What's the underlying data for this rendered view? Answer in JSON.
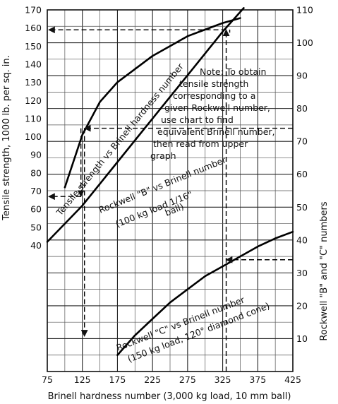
{
  "chart_data": {
    "type": "line",
    "xlabel": "Brinell hardness number (3,000 kg load, 10 mm ball)",
    "ylabel_left": "Tensile strength, 1000 lb. per sq. in.",
    "ylabel_right": "Rockwell \"B\" and \"C\" numbers",
    "xlim": [
      75,
      425
    ],
    "ylim_right": [
      0,
      110
    ],
    "ylim_left": [
      40,
      170
    ],
    "grid": true,
    "x_ticks": [
      "75",
      "125",
      "175",
      "225",
      "275",
      "325",
      "375",
      "425"
    ],
    "y_left_ticks": [
      "40",
      "50",
      "60",
      "70",
      "80",
      "90",
      "100",
      "110",
      "120",
      "130",
      "140",
      "150",
      "160",
      "170"
    ],
    "y_right_ticks": [
      "10",
      "20",
      "30",
      "40",
      "50",
      "60",
      "70",
      "80",
      "90",
      "100",
      "110"
    ],
    "series": [
      {
        "name": "Tensile strength vs Brinell hardness number",
        "axis": "left",
        "x": [
          75,
          125,
          175,
          225,
          275,
          325,
          355
        ],
        "y": [
          42,
          62,
          86,
          110,
          134,
          158,
          171
        ]
      },
      {
        "name": "Rockwell \"B\" vs Brinell number",
        "axis": "right",
        "x": [
          100,
          125,
          150,
          175,
          200,
          225,
          250,
          275,
          300,
          325,
          350
        ],
        "y": [
          56,
          72,
          82,
          88,
          92,
          96,
          99,
          102,
          104,
          106,
          107.5
        ]
      },
      {
        "name": "Rockwell \"C\" vs Brinell number",
        "axis": "right",
        "x": [
          175,
          200,
          225,
          250,
          275,
          300,
          325,
          350,
          375,
          400,
          425
        ],
        "y": [
          5,
          11,
          16,
          21,
          25,
          29,
          32,
          35,
          38,
          40.5,
          42.5
        ]
      }
    ],
    "curve_labels": [
      "Tensile strength vs Brinell hardness number",
      "Rockwell \"B\" vs Brinell number",
      "(100 kg load 1/16\"",
      "ball)",
      "Rockwell \"C\" vs Brinell number",
      "(150 kg load, 120° diamond cone)"
    ],
    "annotation": [
      "Note: To obtain",
      "tensile strength",
      "corresponding to a",
      "given Rockwell number,",
      "use chart to find",
      "equivalent Brinell number,",
      "then read from upper",
      "graph"
    ],
    "examples": [
      {
        "brinell": 128,
        "rockwell": 74,
        "rockwell_scale": "B",
        "tensile": 67
      },
      {
        "brinell": 330,
        "rockwell": 34,
        "rockwell_scale": "C",
        "tensile": 159
      }
    ]
  }
}
